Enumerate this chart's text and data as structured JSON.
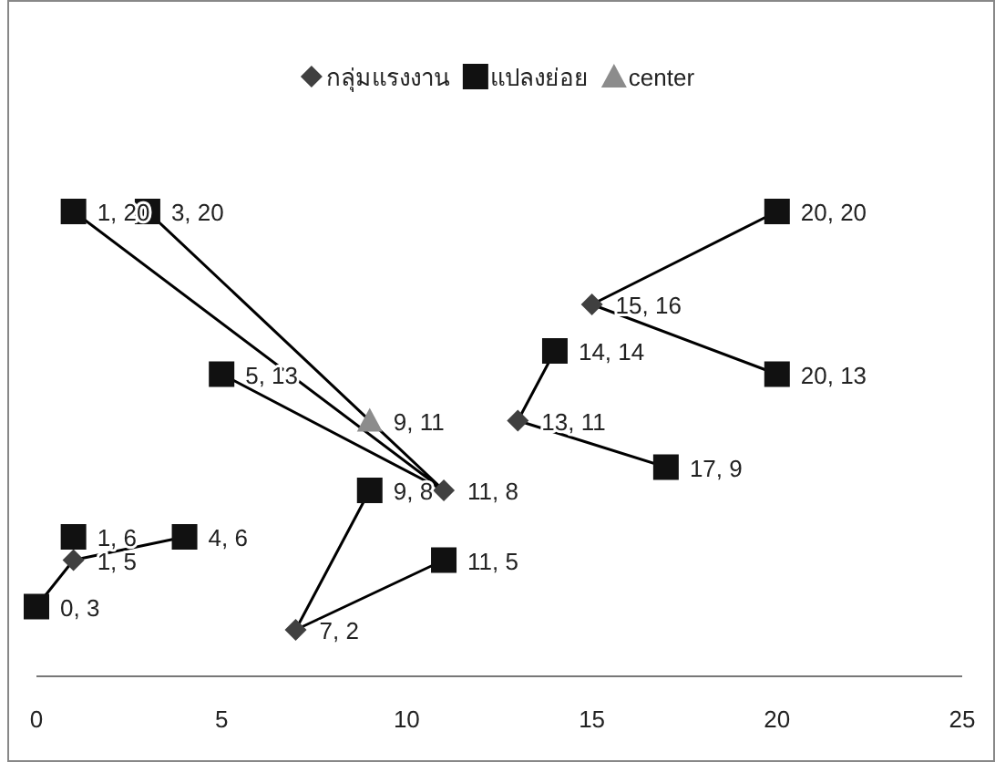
{
  "chart_data": {
    "type": "scatter",
    "xlim": [
      0,
      25
    ],
    "xticks": [
      0,
      5,
      10,
      15,
      20,
      25
    ],
    "tick_labels": "x",
    "grid": false,
    "legend": "top",
    "series": [
      {
        "type": "line",
        "color": "#000000",
        "marker": "none",
        "x": [
          0,
          1,
          4
        ],
        "values": [
          3,
          5,
          6
        ]
      },
      {
        "type": "line",
        "color": "#000000",
        "marker": "none",
        "x": [
          1,
          11,
          3
        ],
        "values": [
          20,
          8,
          20
        ]
      },
      {
        "type": "line",
        "color": "#000000",
        "marker": "none",
        "x": [
          5,
          11
        ],
        "values": [
          13,
          8
        ]
      },
      {
        "type": "line",
        "color": "#000000",
        "marker": "none",
        "x": [
          9,
          7,
          11
        ],
        "values": [
          8,
          2,
          5
        ]
      },
      {
        "type": "line",
        "color": "#000000",
        "marker": "none",
        "x": [
          14,
          13,
          17
        ],
        "values": [
          14,
          11,
          9
        ]
      },
      {
        "type": "line",
        "color": "#000000",
        "marker": "none",
        "x": [
          20,
          15,
          20
        ],
        "values": [
          20,
          16,
          13
        ]
      },
      {
        "name": "กลุ่มแรงงาน",
        "marker": "diamond",
        "color": "#404040",
        "x": [
          1,
          7,
          11,
          13,
          15
        ],
        "values": [
          5,
          2,
          8,
          11,
          16
        ],
        "value_labels": [
          "1, 5",
          "7, 2",
          "11, 8",
          "13, 11",
          "15, 16"
        ]
      },
      {
        "name": "แปลงย่อย",
        "marker": "square",
        "color": "#111111",
        "x": [
          0,
          1,
          4,
          1,
          3,
          5,
          9,
          11,
          14,
          17,
          20,
          20
        ],
        "values": [
          3,
          6,
          6,
          20,
          20,
          13,
          8,
          5,
          14,
          9,
          20,
          13
        ],
        "value_labels": [
          "0, 3",
          "1, 6",
          "4, 6",
          "1, 20",
          "3, 20",
          "5, 13",
          "9, 8",
          "11, 5",
          "14, 14",
          "17, 9",
          "20, 20",
          "20, 13"
        ]
      },
      {
        "name": "center",
        "marker": "triangle",
        "color": "#8c8c8c",
        "x": [
          9
        ],
        "values": [
          11
        ],
        "value_labels": [
          "9, 11"
        ]
      }
    ]
  }
}
